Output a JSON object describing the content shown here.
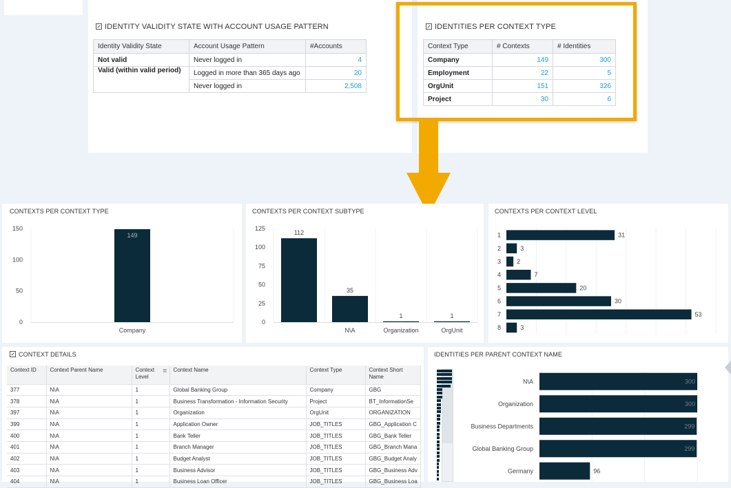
{
  "validity": {
    "title": "IDENTITY VALIDITY STATE WITH ACCOUNT USAGE PATTERN",
    "headers": [
      "Identity Validity State",
      "Account Usage Pattern",
      "#Accounts"
    ],
    "rows": [
      {
        "state": "Not valid",
        "pattern": "Never logged in",
        "count": "4"
      },
      {
        "state": "Valid (within valid period)",
        "pattern": "Logged in more than 365 days ago",
        "count": "20"
      },
      {
        "state": "",
        "pattern": "Never logged in",
        "count": "2,508"
      }
    ]
  },
  "per_type": {
    "title": "IDENTITIES PER CONTEXT TYPE",
    "headers": [
      "Context Type",
      "# Contexts",
      "# Identities"
    ],
    "rows": [
      {
        "type": "Company",
        "contexts": "149",
        "identities": "300"
      },
      {
        "type": "Employment",
        "contexts": "22",
        "identities": "5"
      },
      {
        "type": "OrgUnit",
        "contexts": "151",
        "identities": "326"
      },
      {
        "type": "Project",
        "contexts": "30",
        "identities": "6"
      }
    ]
  },
  "highlight_color": "#f2a900",
  "bar_color": "#0b2a3a",
  "link_color": "#1aa0dc",
  "chart_data": [
    {
      "type": "bar",
      "title": "CONTEXTS PER CONTEXT TYPE",
      "categories": [
        "Company"
      ],
      "values": [
        149
      ],
      "data_labels": [
        "149"
      ],
      "y_ticks": [
        "0",
        "50",
        "100",
        "150"
      ],
      "ylim": [
        0,
        150
      ]
    },
    {
      "type": "bar",
      "title": "CONTEXTS PER CONTEXT SUBTYPE",
      "categories": [
        "",
        "N\\A",
        "Organization",
        "OrgUnit"
      ],
      "values": [
        112,
        35,
        1,
        1
      ],
      "data_labels": [
        "112",
        "35",
        "1",
        "1"
      ],
      "y_ticks": [
        "0",
        "25",
        "50",
        "75",
        "100",
        "125"
      ],
      "ylim": [
        0,
        125
      ]
    },
    {
      "type": "bar",
      "orientation": "horizontal",
      "title": "CONTEXTS PER CONTEXT LEVEL",
      "categories": [
        "1",
        "2",
        "3",
        "4",
        "5",
        "6",
        "7",
        "8"
      ],
      "values": [
        31,
        3,
        2,
        7,
        20,
        30,
        53,
        3
      ],
      "data_labels": [
        "31",
        "3",
        "2",
        "7",
        "20",
        "30",
        "53",
        "3"
      ],
      "xlim": [
        0,
        60
      ]
    },
    {
      "type": "bar",
      "orientation": "horizontal",
      "title": "IDENTITIES PER PARENT CONTEXT NAME",
      "categories": [
        "N\\A",
        "Organization",
        "Business Departments",
        "Global Banking Group",
        "Germany"
      ],
      "values": [
        300,
        300,
        299,
        299,
        96
      ],
      "data_labels": [
        "300",
        "300",
        "299",
        "299",
        "96"
      ],
      "xlim": [
        0,
        300
      ]
    }
  ],
  "details": {
    "title": "CONTEXT DETAILS",
    "headers": [
      "Context ID",
      "Context Parent Name",
      "Context Level",
      "Context Name",
      "Context Type",
      "Context Short Name"
    ],
    "rows": [
      [
        "377",
        "N\\A",
        "1",
        "Global Banking Group",
        "Company",
        "GBG"
      ],
      [
        "378",
        "N\\A",
        "1",
        "Business Transformation - Information Security",
        "Project",
        "BT_InformationSe"
      ],
      [
        "397",
        "N\\A",
        "1",
        "Organization",
        "OrgUnit",
        "ORGANIZATION"
      ],
      [
        "399",
        "N\\A",
        "1",
        "Application Owner",
        "JOB_TITLES",
        "GBG_Application C"
      ],
      [
        "400",
        "N\\A",
        "1",
        "Bank Teller",
        "JOB_TITLES",
        "GBG_Bank Teller"
      ],
      [
        "401",
        "N\\A",
        "1",
        "Branch Manager",
        "JOB_TITLES",
        "GBG_Branch Mana"
      ],
      [
        "402",
        "N\\A",
        "1",
        "Budget Analyst",
        "JOB_TITLES",
        "GBG_Budget Analy"
      ],
      [
        "403",
        "N\\A",
        "1",
        "Business Advisor",
        "JOB_TITLES",
        "GBG_Business Adv"
      ],
      [
        "404",
        "N\\A",
        "1",
        "Business Loan Officer",
        "JOB_TITLES",
        "GBG_Business Loa"
      ]
    ]
  }
}
